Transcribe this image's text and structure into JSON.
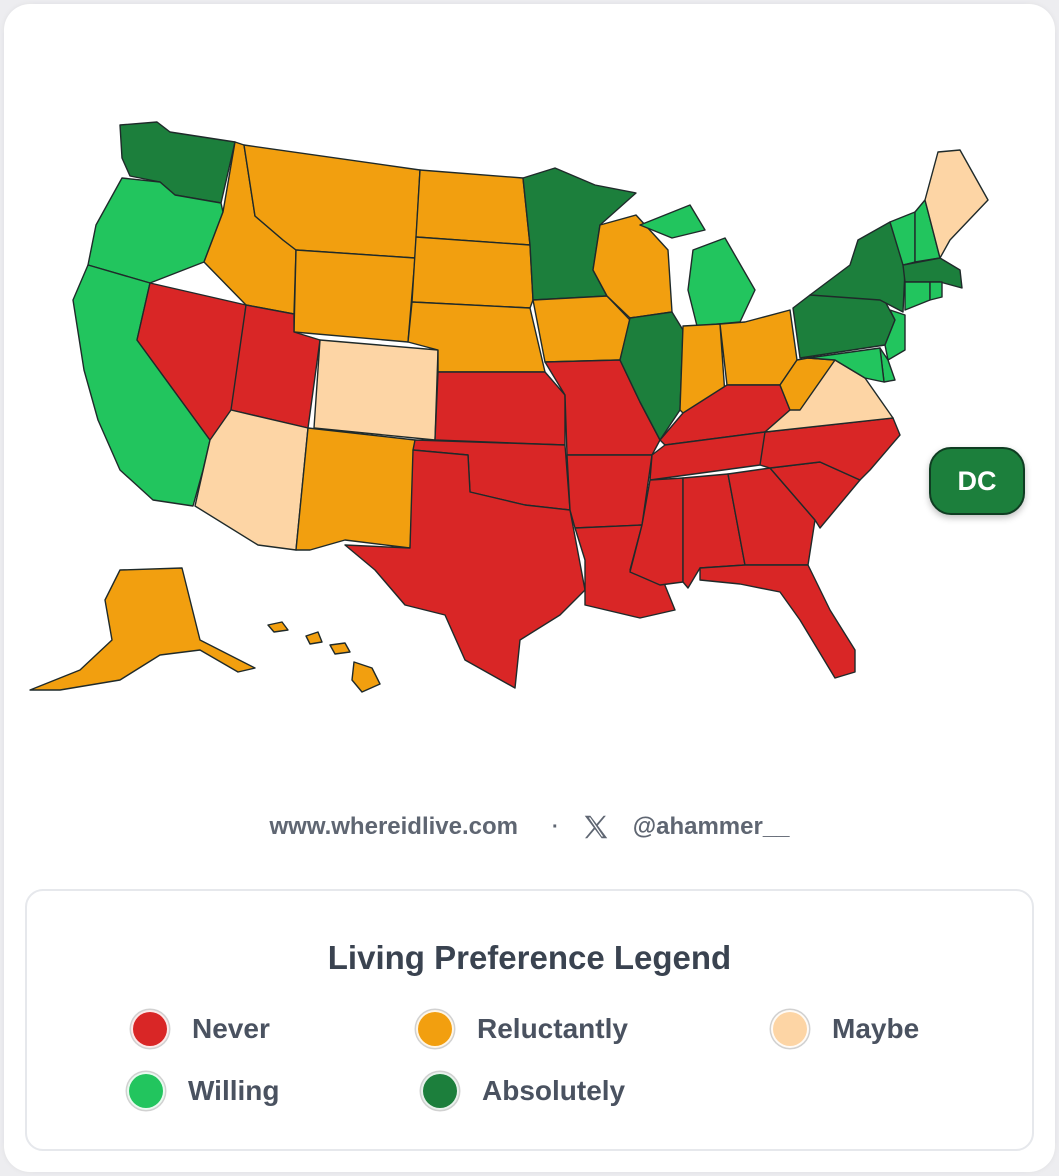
{
  "colors": {
    "never": "#d92626",
    "reluctantly": "#f29f0f",
    "maybe": "#fdd5a5",
    "willing": "#22c55e",
    "absolutely": "#1c7f3c"
  },
  "map": {
    "dc_label": "DC",
    "dc_category": "absolutely",
    "states": {
      "WA": "absolutely",
      "OR": "willing",
      "CA": "willing",
      "NV": "never",
      "ID": "reluctantly",
      "MT": "reluctantly",
      "WY": "reluctantly",
      "UT": "never",
      "AZ": "maybe",
      "CO": "maybe",
      "NM": "reluctantly",
      "ND": "reluctantly",
      "SD": "reluctantly",
      "NE": "reluctantly",
      "KS": "never",
      "OK": "never",
      "TX": "never",
      "MN": "absolutely",
      "IA": "reluctantly",
      "MO": "never",
      "AR": "never",
      "LA": "never",
      "WI": "reluctantly",
      "IL": "absolutely",
      "MI": "willing",
      "IN": "reluctantly",
      "OH": "reluctantly",
      "KY": "never",
      "TN": "never",
      "MS": "never",
      "AL": "never",
      "GA": "never",
      "FL": "never",
      "SC": "never",
      "NC": "never",
      "VA": "maybe",
      "WV": "reluctantly",
      "PA": "absolutely",
      "NY": "absolutely",
      "VT": "willing",
      "NH": "willing",
      "ME": "maybe",
      "MA": "absolutely",
      "RI": "willing",
      "CT": "willing",
      "NJ": "willing",
      "DE": "willing",
      "MD": "willing",
      "AK": "reluctantly",
      "HI": "reluctantly"
    }
  },
  "footer": {
    "website": "www.whereidlive.com",
    "separator": "·",
    "x_icon": "x-logo-icon",
    "handle": "@ahammer__"
  },
  "legend": {
    "title": "Living Preference Legend",
    "items": [
      {
        "key": "never",
        "label": "Never"
      },
      {
        "key": "reluctantly",
        "label": "Reluctantly"
      },
      {
        "key": "maybe",
        "label": "Maybe"
      },
      {
        "key": "willing",
        "label": "Willing"
      },
      {
        "key": "absolutely",
        "label": "Absolutely"
      }
    ]
  }
}
